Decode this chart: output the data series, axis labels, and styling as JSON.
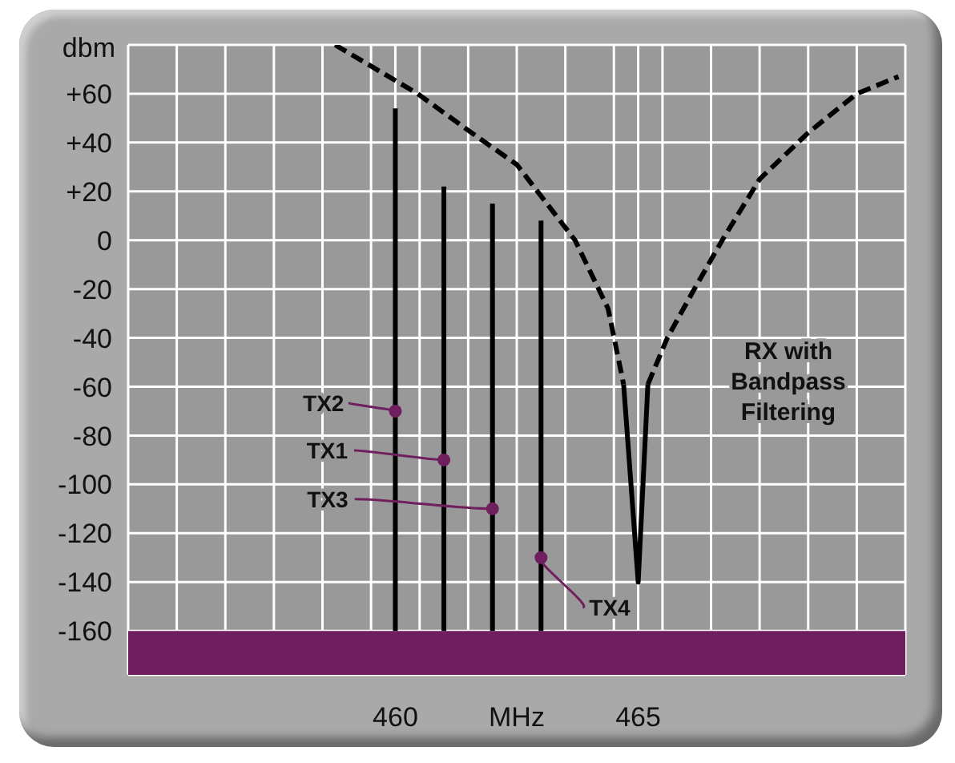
{
  "chart_data": {
    "type": "line",
    "ylabel": "dbm",
    "xlabel": "MHz",
    "xlim": [
      454.5,
      470.5
    ],
    "xticks": [
      {
        "value": 455.5,
        "label": null
      },
      {
        "value": 456.5,
        "label": null
      },
      {
        "value": 457.5,
        "label": null
      },
      {
        "value": 458.5,
        "label": null
      },
      {
        "value": 459.5,
        "label": null
      },
      460,
      {
        "value": 460.5,
        "label": null
      },
      {
        "value": 461.5,
        "label": null
      },
      {
        "value": 462.5,
        "label": null
      },
      {
        "value": 463.5,
        "label": null
      },
      {
        "value": 464.5,
        "label": null
      },
      465,
      {
        "value": 465.5,
        "label": null
      },
      {
        "value": 466.5,
        "label": null
      },
      {
        "value": 467.5,
        "label": null
      },
      {
        "value": 468.5,
        "label": null
      },
      {
        "value": 469.5,
        "label": null
      }
    ],
    "ylim": [
      -178,
      80
    ],
    "yticks": [
      {
        "value": 80,
        "label": null
      },
      {
        "value": 60,
        "label": "+60"
      },
      {
        "value": 40,
        "label": "+40"
      },
      {
        "value": 20,
        "label": "+20"
      },
      0,
      -20,
      -40,
      -60,
      -80,
      -100,
      -120,
      -140,
      -160
    ],
    "grid": true,
    "marker": "none",
    "series": [
      {
        "color": "#000000",
        "line_style": "solid",
        "x": [
          460,
          460
        ],
        "values": [
          -160,
          54
        ]
      },
      {
        "color": "#000000",
        "line_style": "solid",
        "x": [
          461,
          461
        ],
        "values": [
          -160,
          22
        ]
      },
      {
        "color": "#000000",
        "line_style": "solid",
        "x": [
          462,
          462
        ],
        "values": [
          -160,
          15
        ]
      },
      {
        "color": "#000000",
        "line_style": "solid",
        "x": [
          463,
          463
        ],
        "values": [
          -160,
          8
        ]
      },
      {
        "color": "#000000",
        "line_style": "dashed",
        "x": [
          458.76,
          460.46,
          461.5,
          462.5,
          463.7,
          464.38,
          464.7
        ],
        "values": [
          80,
          60,
          45,
          31,
          0,
          -28,
          -59
        ]
      },
      {
        "color": "#000000",
        "line_style": "solid",
        "x": [
          464.7,
          465.0,
          465.2
        ],
        "values": [
          -59,
          -140,
          -59
        ]
      },
      {
        "color": "#000000",
        "line_style": "dashed",
        "x": [
          465.2,
          465.6,
          466.1,
          466.73,
          467.5,
          468.5,
          469.5,
          470.36
        ],
        "values": [
          -59,
          -40,
          -22,
          0,
          25,
          44,
          60,
          67
        ]
      }
    ],
    "bands": [
      {
        "axis": "y",
        "from": -178,
        "to": -160,
        "color": "#6f1f5d"
      }
    ],
    "annotations": [
      {
        "text": "TX2",
        "x": 460,
        "y": -70
      },
      {
        "text": "TX1",
        "x": 461,
        "y": -90
      },
      {
        "text": "TX3",
        "x": 462,
        "y": -110
      },
      {
        "text": "TX4",
        "x": 463,
        "y": -130
      },
      "RX with Bandpass Filtering"
    ]
  }
}
